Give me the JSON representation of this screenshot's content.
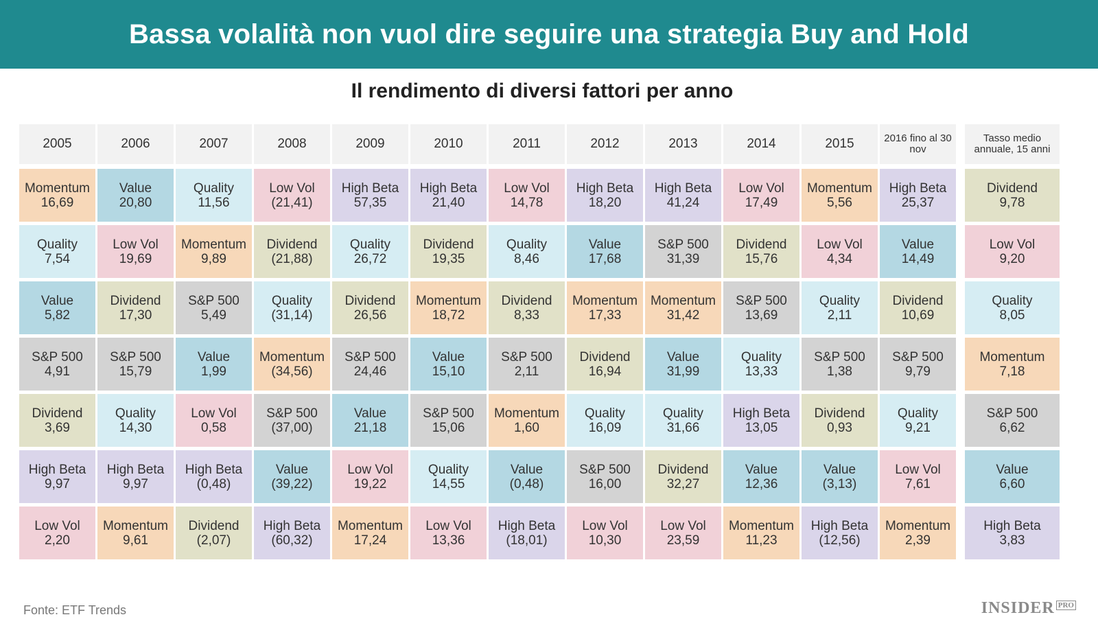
{
  "title": "Bassa volalità non vuol dire seguire una strategia Buy and Hold",
  "subtitle": "Il rendimento di diversi fattori per anno",
  "source": "Fonte: ETF Trends",
  "logo": {
    "name": "INSIDER",
    "badge": "PRO"
  },
  "colors": {
    "banner": "#1f8a8f",
    "header": "#f2f2f2",
    "Momentum": "#f7d8b9",
    "Value": "#b4d8e3",
    "Quality": "#d6edf3",
    "Low Vol": "#f1d1d8",
    "High Beta": "#dad5ea",
    "Dividend": "#e1e1c8",
    "S&P 500": "#d3d3d3"
  },
  "chart_data": {
    "type": "table",
    "title": "Il rendimento di diversi fattori per anno",
    "columns": [
      "2005",
      "2006",
      "2007",
      "2008",
      "2009",
      "2010",
      "2011",
      "2012",
      "2013",
      "2014",
      "2015",
      "2016 fino al 30 nov"
    ],
    "summary_column": "Tasso medio annuale, 15 anni",
    "rows": [
      [
        [
          "Momentum",
          "16,69"
        ],
        [
          "Value",
          "20,80"
        ],
        [
          "Quality",
          "11,56"
        ],
        [
          "Low Vol",
          "(21,41)"
        ],
        [
          "High Beta",
          "57,35"
        ],
        [
          "High Beta",
          "21,40"
        ],
        [
          "Low Vol",
          "14,78"
        ],
        [
          "High Beta",
          "18,20"
        ],
        [
          "High Beta",
          "41,24"
        ],
        [
          "Low Vol",
          "17,49"
        ],
        [
          "Momentum",
          "5,56"
        ],
        [
          "High Beta",
          "25,37"
        ],
        [
          "Dividend",
          "9,78"
        ]
      ],
      [
        [
          "Quality",
          "7,54"
        ],
        [
          "Low Vol",
          "19,69"
        ],
        [
          "Momentum",
          "9,89"
        ],
        [
          "Dividend",
          "(21,88)"
        ],
        [
          "Quality",
          "26,72"
        ],
        [
          "Dividend",
          "19,35"
        ],
        [
          "Quality",
          "8,46"
        ],
        [
          "Value",
          "17,68"
        ],
        [
          "S&P 500",
          "31,39"
        ],
        [
          "Dividend",
          "15,76"
        ],
        [
          "Low Vol",
          "4,34"
        ],
        [
          "Value",
          "14,49"
        ],
        [
          "Low Vol",
          "9,20"
        ]
      ],
      [
        [
          "Value",
          "5,82"
        ],
        [
          "Dividend",
          "17,30"
        ],
        [
          "S&P 500",
          "5,49"
        ],
        [
          "Quality",
          "(31,14)"
        ],
        [
          "Dividend",
          "26,56"
        ],
        [
          "Momentum",
          "18,72"
        ],
        [
          "Dividend",
          "8,33"
        ],
        [
          "Momentum",
          "17,33"
        ],
        [
          "Momentum",
          "31,42"
        ],
        [
          "S&P 500",
          "13,69"
        ],
        [
          "Quality",
          "2,11"
        ],
        [
          "Dividend",
          "10,69"
        ],
        [
          "Quality",
          "8,05"
        ]
      ],
      [
        [
          "S&P 500",
          "4,91"
        ],
        [
          "S&P 500",
          "15,79"
        ],
        [
          "Value",
          "1,99"
        ],
        [
          "Momentum",
          "(34,56)"
        ],
        [
          "S&P 500",
          "24,46"
        ],
        [
          "Value",
          "15,10"
        ],
        [
          "S&P 500",
          "2,11"
        ],
        [
          "Dividend",
          "16,94"
        ],
        [
          "Value",
          "31,99"
        ],
        [
          "Quality",
          "13,33"
        ],
        [
          "S&P 500",
          "1,38"
        ],
        [
          "S&P 500",
          "9,79"
        ],
        [
          "Momentum",
          "7,18"
        ]
      ],
      [
        [
          "Dividend",
          "3,69"
        ],
        [
          "Quality",
          "14,30"
        ],
        [
          "Low Vol",
          "0,58"
        ],
        [
          "S&P 500",
          "(37,00)"
        ],
        [
          "Value",
          "21,18"
        ],
        [
          "S&P 500",
          "15,06"
        ],
        [
          "Momentum",
          "1,60"
        ],
        [
          "Quality",
          "16,09"
        ],
        [
          "Quality",
          "31,66"
        ],
        [
          "High Beta",
          "13,05"
        ],
        [
          "Dividend",
          "0,93"
        ],
        [
          "Quality",
          "9,21"
        ],
        [
          "S&P 500",
          "6,62"
        ]
      ],
      [
        [
          "High Beta",
          "9,97"
        ],
        [
          "High Beta",
          "9,97"
        ],
        [
          "High Beta",
          "(0,48)"
        ],
        [
          "Value",
          "(39,22)"
        ],
        [
          "Low Vol",
          "19,22"
        ],
        [
          "Quality",
          "14,55"
        ],
        [
          "Value",
          "(0,48)"
        ],
        [
          "S&P 500",
          "16,00"
        ],
        [
          "Dividend",
          "32,27"
        ],
        [
          "Value",
          "12,36"
        ],
        [
          "Value",
          "(3,13)"
        ],
        [
          "Low Vol",
          "7,61"
        ],
        [
          "Value",
          "6,60"
        ]
      ],
      [
        [
          "Low Vol",
          "2,20"
        ],
        [
          "Momentum",
          "9,61"
        ],
        [
          "Dividend",
          "(2,07)"
        ],
        [
          "High Beta",
          "(60,32)"
        ],
        [
          "Momentum",
          "17,24"
        ],
        [
          "Low Vol",
          "13,36"
        ],
        [
          "High Beta",
          "(18,01)"
        ],
        [
          "Low Vol",
          "10,30"
        ],
        [
          "Low Vol",
          "23,59"
        ],
        [
          "Momentum",
          "11,23"
        ],
        [
          "High Beta",
          "(12,56)"
        ],
        [
          "Momentum",
          "2,39"
        ],
        [
          "High Beta",
          "3,83"
        ]
      ]
    ]
  }
}
